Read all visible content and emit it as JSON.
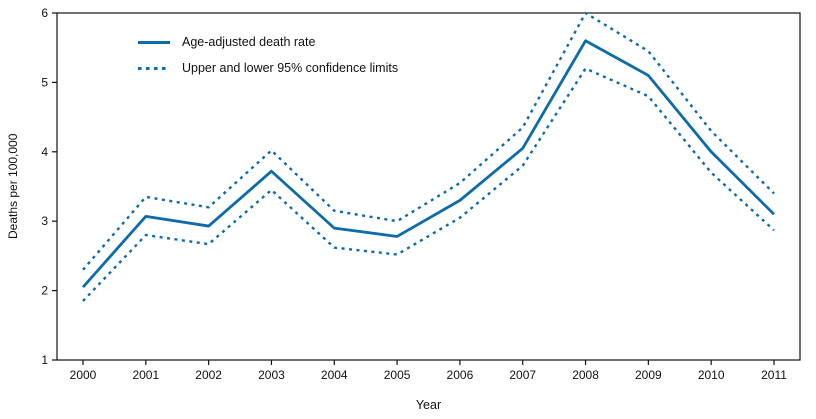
{
  "chart_data": {
    "type": "line",
    "x": [
      2000,
      2001,
      2002,
      2003,
      2004,
      2005,
      2006,
      2007,
      2008,
      2009,
      2010,
      2011
    ],
    "series": [
      {
        "name": "Age-adjusted death rate",
        "style": "solid",
        "values": [
          2.05,
          3.07,
          2.93,
          3.72,
          2.9,
          2.78,
          3.3,
          4.05,
          5.6,
          5.1,
          4.0,
          3.1
        ]
      },
      {
        "name": "Upper 95% confidence limit",
        "style": "dashed",
        "values": [
          2.3,
          3.35,
          3.2,
          4.02,
          3.15,
          3.0,
          3.55,
          4.35,
          6.0,
          5.45,
          4.3,
          3.4
        ]
      },
      {
        "name": "Lower 95% confidence limit",
        "style": "dashed",
        "values": [
          1.85,
          2.8,
          2.67,
          3.45,
          2.62,
          2.52,
          3.05,
          3.8,
          5.2,
          4.8,
          3.7,
          2.87
        ]
      }
    ],
    "xlabel": "Year",
    "ylabel": "Deaths per 100,000",
    "ylim": [
      1,
      6
    ],
    "y_ticks": [
      1,
      2,
      3,
      4,
      5,
      6
    ],
    "legend": [
      {
        "label": "Age-adjusted death rate",
        "style": "solid"
      },
      {
        "label": "Upper and lower 95% confidence limits",
        "style": "dashed"
      }
    ],
    "legend_position": "upper-left-inside",
    "grid": false
  },
  "colors": {
    "line": "#0c6ba8",
    "axis": "#111111",
    "background": "#ffffff"
  }
}
